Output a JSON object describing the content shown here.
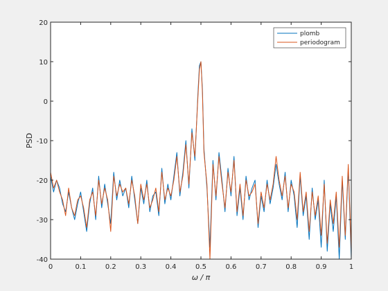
{
  "chart_data": {
    "type": "line",
    "title": "",
    "xlabel": "ω / π",
    "ylabel": "PSD",
    "xlim": [
      0,
      1
    ],
    "ylim": [
      -40,
      20
    ],
    "xticks": [
      0,
      0.1,
      0.2,
      0.3,
      0.4,
      0.5,
      0.6,
      0.7,
      0.8,
      0.9,
      1
    ],
    "xtick_labels": [
      "0",
      "0.1",
      "0.2",
      "0.3",
      "0.4",
      "0.5",
      "0.6",
      "0.7",
      "0.8",
      "0.9",
      "1"
    ],
    "yticks": [
      -40,
      -30,
      -20,
      -10,
      0,
      10,
      20
    ],
    "ytick_labels": [
      "-40",
      "-30",
      "-20",
      "-10",
      "0",
      "10",
      "20"
    ],
    "grid": false,
    "legend_position": "top-right",
    "colors": {
      "plomb": "#0072bd",
      "periodogram": "#d95319"
    },
    "series": [
      {
        "name": "plomb",
        "x": [
          0.0,
          0.01,
          0.02,
          0.03,
          0.04,
          0.05,
          0.06,
          0.07,
          0.08,
          0.09,
          0.1,
          0.11,
          0.12,
          0.13,
          0.14,
          0.15,
          0.16,
          0.17,
          0.18,
          0.19,
          0.2,
          0.21,
          0.22,
          0.23,
          0.24,
          0.25,
          0.26,
          0.27,
          0.28,
          0.29,
          0.3,
          0.31,
          0.32,
          0.33,
          0.34,
          0.35,
          0.36,
          0.37,
          0.38,
          0.39,
          0.4,
          0.41,
          0.42,
          0.43,
          0.44,
          0.45,
          0.46,
          0.47,
          0.48,
          0.49,
          0.495,
          0.5,
          0.505,
          0.51,
          0.52,
          0.53,
          0.54,
          0.55,
          0.56,
          0.57,
          0.58,
          0.59,
          0.6,
          0.61,
          0.62,
          0.63,
          0.64,
          0.65,
          0.66,
          0.67,
          0.68,
          0.69,
          0.7,
          0.71,
          0.72,
          0.73,
          0.74,
          0.75,
          0.76,
          0.77,
          0.78,
          0.79,
          0.8,
          0.81,
          0.82,
          0.83,
          0.84,
          0.85,
          0.86,
          0.87,
          0.88,
          0.89,
          0.9,
          0.91,
          0.92,
          0.93,
          0.94,
          0.95,
          0.96,
          0.97,
          0.98,
          0.99,
          1.0
        ],
        "values": [
          -19,
          -23,
          -20,
          -22,
          -26,
          -28,
          -23,
          -27,
          -30,
          -26,
          -23,
          -28,
          -33,
          -26,
          -22,
          -30,
          -19,
          -27,
          -21,
          -26,
          -31,
          -18,
          -25,
          -20,
          -24,
          -22,
          -27,
          -19,
          -25,
          -31,
          -22,
          -26,
          -20,
          -28,
          -24,
          -23,
          -29,
          -17,
          -26,
          -21,
          -25,
          -19,
          -13,
          -24,
          -18,
          -10,
          -22,
          -7,
          -15,
          2,
          9,
          10,
          3,
          -12,
          -22,
          -37,
          -15,
          -25,
          -13,
          -20,
          -28,
          -17,
          -24,
          -14,
          -29,
          -22,
          -30,
          -19,
          -25,
          -22,
          -20,
          -32,
          -24,
          -28,
          -20,
          -26,
          -22,
          -16,
          -21,
          -25,
          -18,
          -28,
          -20,
          -24,
          -32,
          -19,
          -29,
          -24,
          -35,
          -22,
          -30,
          -25,
          -37,
          -20,
          -38,
          -26,
          -33,
          -24,
          -40,
          -20,
          -35,
          -17,
          -40
        ]
      },
      {
        "name": "periodogram",
        "x": [
          0.0,
          0.01,
          0.02,
          0.03,
          0.04,
          0.05,
          0.06,
          0.07,
          0.08,
          0.09,
          0.1,
          0.11,
          0.12,
          0.13,
          0.14,
          0.15,
          0.16,
          0.17,
          0.18,
          0.19,
          0.2,
          0.21,
          0.22,
          0.23,
          0.24,
          0.25,
          0.26,
          0.27,
          0.28,
          0.29,
          0.3,
          0.31,
          0.32,
          0.33,
          0.34,
          0.35,
          0.36,
          0.37,
          0.38,
          0.39,
          0.4,
          0.41,
          0.42,
          0.43,
          0.44,
          0.45,
          0.46,
          0.47,
          0.48,
          0.49,
          0.495,
          0.5,
          0.505,
          0.51,
          0.52,
          0.53,
          0.54,
          0.55,
          0.56,
          0.57,
          0.58,
          0.59,
          0.6,
          0.61,
          0.62,
          0.63,
          0.64,
          0.65,
          0.66,
          0.67,
          0.68,
          0.69,
          0.7,
          0.71,
          0.72,
          0.73,
          0.74,
          0.75,
          0.76,
          0.77,
          0.78,
          0.79,
          0.8,
          0.81,
          0.82,
          0.83,
          0.84,
          0.85,
          0.86,
          0.87,
          0.88,
          0.89,
          0.9,
          0.91,
          0.92,
          0.93,
          0.94,
          0.95,
          0.96,
          0.97,
          0.98,
          0.99,
          1.0
        ],
        "values": [
          -18,
          -22,
          -20,
          -23,
          -25,
          -29,
          -22,
          -27,
          -29,
          -25,
          -24,
          -27,
          -32,
          -25,
          -23,
          -29,
          -20,
          -26,
          -22,
          -25,
          -33,
          -19,
          -24,
          -21,
          -23,
          -22,
          -26,
          -20,
          -24,
          -31,
          -21,
          -25,
          -21,
          -27,
          -25,
          -22,
          -28,
          -18,
          -25,
          -22,
          -24,
          -20,
          -14,
          -23,
          -19,
          -11,
          -21,
          -8,
          -14,
          1,
          8,
          10,
          2,
          -13,
          -21,
          -40,
          -16,
          -24,
          -14,
          -21,
          -27,
          -18,
          -23,
          -15,
          -28,
          -21,
          -29,
          -20,
          -24,
          -23,
          -21,
          -31,
          -23,
          -27,
          -21,
          -25,
          -21,
          -14,
          -20,
          -24,
          -19,
          -27,
          -21,
          -23,
          -30,
          -18,
          -28,
          -23,
          -33,
          -23,
          -29,
          -24,
          -34,
          -21,
          -36,
          -25,
          -31,
          -23,
          -37,
          -19,
          -34,
          -16,
          -38
        ]
      }
    ]
  }
}
